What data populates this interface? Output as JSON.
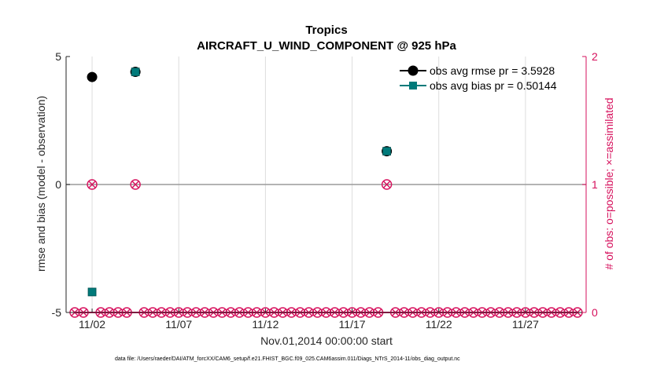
{
  "chart_data": {
    "type": "scatter",
    "title": "Tropics",
    "subtitle": "AIRCRAFT_U_WIND_COMPONENT @ 925 hPa",
    "xlabel": "Nov.01,2014 00:00:00 start",
    "ylabel": "rmse and bias (model - observation)",
    "ylabel_right": "# of obs: o=possible; ×=assimilated",
    "footnote": "data file: /Users/raeder/DAI/ATM_forcXX/CAM6_setup/f.e21.FHIST_BGC.f09_025.CAM6assim.011/Diags_NTrS_2014-11/obs_diag_output.nc",
    "xlim": [
      0.5,
      30.5
    ],
    "ylim": [
      -5,
      5
    ],
    "ylim_right": [
      0,
      2
    ],
    "x_tick_values": [
      2,
      7,
      12,
      17,
      22,
      27
    ],
    "x_tick_labels": [
      "11/02",
      "11/07",
      "11/12",
      "11/17",
      "11/22",
      "11/27"
    ],
    "y_ticks": [
      -5,
      0,
      5
    ],
    "y_tick_labels": [
      "-5",
      "0",
      "5"
    ],
    "y_right_ticks": [
      0,
      1,
      2
    ],
    "y_right_tick_labels": [
      "0",
      "1",
      "2"
    ],
    "grid": "vertical",
    "legend_position": "top-right",
    "colors": {
      "rmse": "#000000",
      "bias": "#007a7a",
      "obs": "#d6105c",
      "axis": "#262626"
    },
    "series": [
      {
        "name": "obs avg rmse pr = 3.5928",
        "axis": "left",
        "marker": "circle",
        "x": [
          2.0,
          4.5,
          19.0
        ],
        "y": [
          4.2,
          4.4,
          1.3
        ]
      },
      {
        "name": "obs avg bias pr = 0.50144",
        "axis": "left",
        "marker": "square",
        "x": [
          2.0,
          4.5,
          19.0
        ],
        "y": [
          -4.2,
          4.4,
          1.3
        ]
      },
      {
        "axis": "right",
        "marker": "circle-x",
        "x": [
          1.0,
          1.5,
          2.0,
          2.5,
          3.0,
          3.5,
          4.0,
          4.5,
          5.0,
          5.5,
          6.0,
          6.5,
          7.0,
          7.5,
          8.0,
          8.5,
          9.0,
          9.5,
          10.0,
          10.5,
          11.0,
          11.5,
          12.0,
          12.5,
          13.0,
          13.5,
          14.0,
          14.5,
          15.0,
          15.5,
          16.0,
          16.5,
          17.0,
          17.5,
          18.0,
          18.5,
          19.0,
          19.5,
          20.0,
          20.5,
          21.0,
          21.5,
          22.0,
          22.5,
          23.0,
          23.5,
          24.0,
          24.5,
          25.0,
          25.5,
          26.0,
          26.5,
          27.0,
          27.5,
          28.0,
          28.5,
          29.0,
          29.5,
          30.0
        ],
        "y": [
          0,
          0,
          1,
          0,
          0,
          0,
          0,
          1,
          0,
          0,
          0,
          0,
          0,
          0,
          0,
          0,
          0,
          0,
          0,
          0,
          0,
          0,
          0,
          0,
          0,
          0,
          0,
          0,
          0,
          0,
          0,
          0,
          0,
          0,
          0,
          0,
          1,
          0,
          0,
          0,
          0,
          0,
          0,
          0,
          0,
          0,
          0,
          0,
          0,
          0,
          0,
          0,
          0,
          0,
          0,
          0,
          0,
          0,
          0
        ]
      }
    ]
  }
}
